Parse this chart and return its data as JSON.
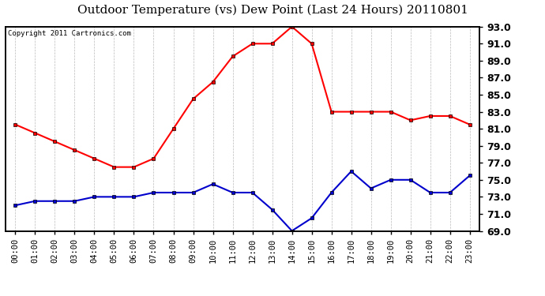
{
  "title": "Outdoor Temperature (vs) Dew Point (Last 24 Hours) 20110801",
  "copyright": "Copyright 2011 Cartronics.com",
  "hours": [
    "00:00",
    "01:00",
    "02:00",
    "03:00",
    "04:00",
    "05:00",
    "06:00",
    "07:00",
    "08:00",
    "09:00",
    "10:00",
    "11:00",
    "12:00",
    "13:00",
    "14:00",
    "15:00",
    "16:00",
    "17:00",
    "18:00",
    "19:00",
    "20:00",
    "21:00",
    "22:00",
    "23:00"
  ],
  "temp": [
    81.5,
    80.5,
    79.5,
    78.5,
    77.5,
    76.5,
    76.5,
    77.5,
    81.0,
    84.5,
    86.5,
    89.5,
    91.0,
    91.0,
    93.0,
    91.0,
    83.0,
    83.0,
    83.0,
    83.0,
    82.0,
    82.5,
    82.5,
    81.5
  ],
  "dew": [
    72.0,
    72.5,
    72.5,
    72.5,
    73.0,
    73.0,
    73.0,
    73.5,
    73.5,
    73.5,
    74.5,
    73.5,
    73.5,
    71.5,
    69.0,
    70.5,
    73.5,
    76.0,
    74.0,
    75.0,
    75.0,
    73.5,
    73.5,
    75.5
  ],
  "temp_color": "#ff0000",
  "dew_color": "#0000cc",
  "bg_color": "#ffffff",
  "grid_color": "#aaaaaa",
  "ylim_min": 69.0,
  "ylim_max": 93.0,
  "yticks": [
    69.0,
    71.0,
    73.0,
    75.0,
    77.0,
    79.0,
    81.0,
    83.0,
    85.0,
    87.0,
    89.0,
    91.0,
    93.0
  ],
  "title_fontsize": 11,
  "copyright_fontsize": 6.5,
  "tick_labelsize": 7.5,
  "ytick_labelsize": 9,
  "line_width": 1.5,
  "marker": "s",
  "marker_size": 3
}
